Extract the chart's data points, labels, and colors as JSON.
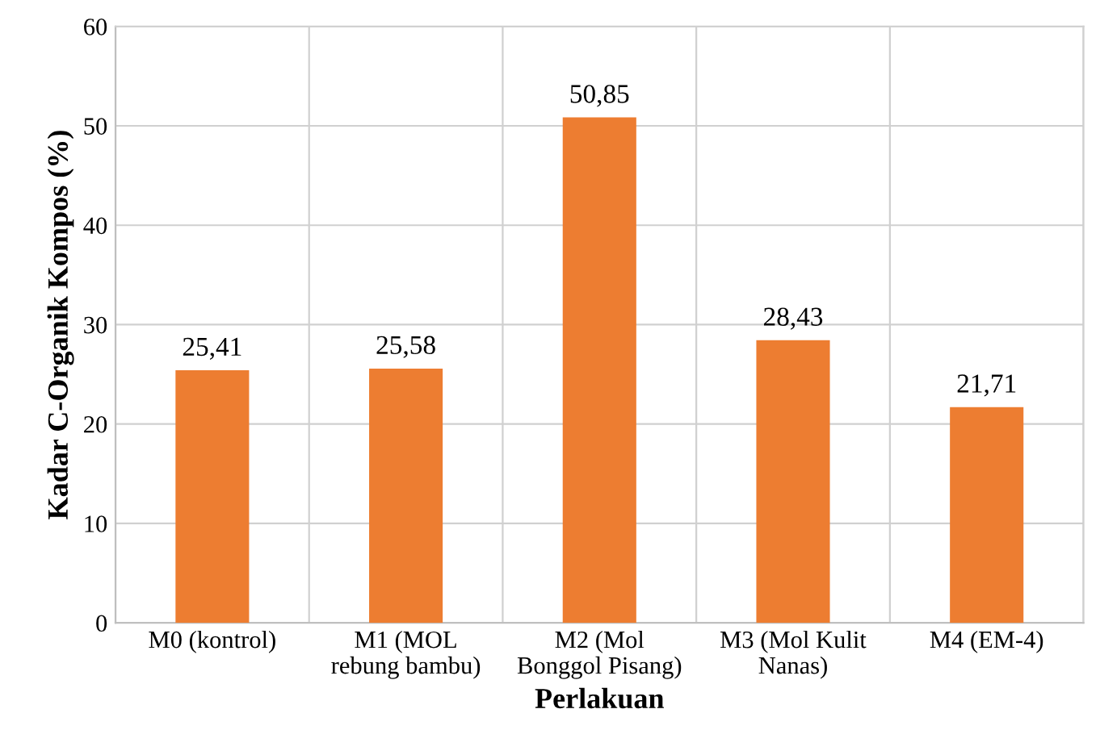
{
  "chart_data": {
    "type": "bar",
    "categories": [
      "M0 (kontrol)",
      "M1 (MOL\nrebung bambu)",
      "M2 (Mol\nBonggol Pisang)",
      "M3 (Mol Kulit\nNanas)",
      "M4 (EM-4)"
    ],
    "values": [
      25.41,
      25.58,
      50.85,
      28.43,
      21.71
    ],
    "value_labels": [
      "25,41",
      "25,58",
      "50,85",
      "28,43",
      "21,71"
    ],
    "color": "#ed7d31",
    "xlabel": "Perlakuan",
    "ylabel": "Kadar C-Organik Kompos (%)",
    "ylim": [
      0,
      60
    ],
    "yticks": [
      0,
      10,
      20,
      30,
      40,
      50,
      60
    ],
    "grid": true
  }
}
